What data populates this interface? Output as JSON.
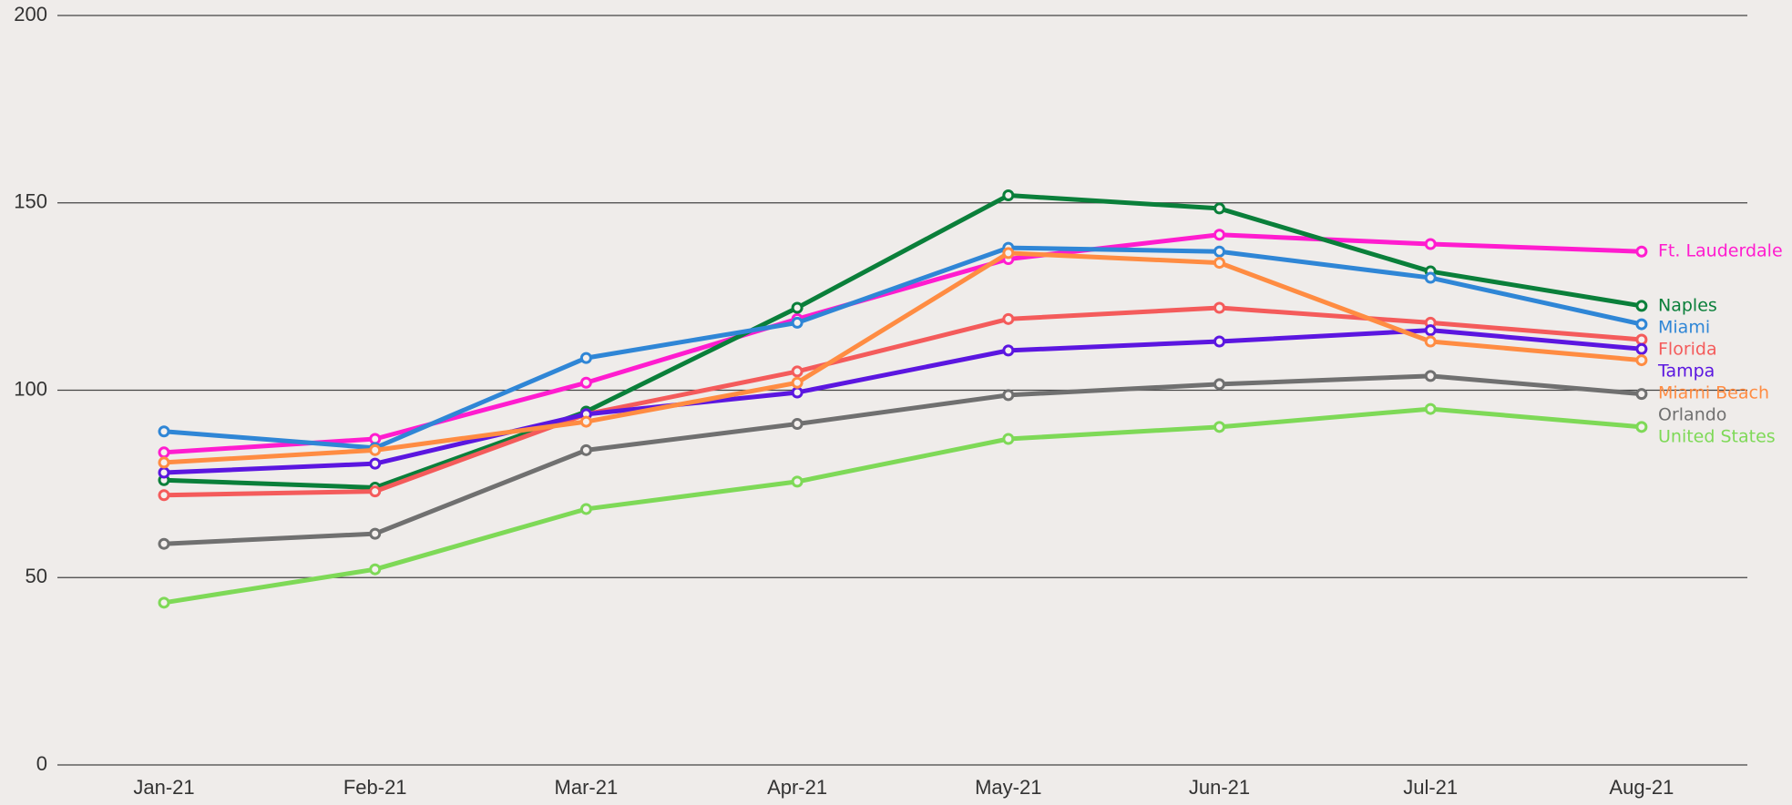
{
  "chart_data": {
    "type": "line",
    "categories": [
      "Jan-21",
      "Feb-21",
      "Mar-21",
      "Apr-21",
      "May-21",
      "Jun-21",
      "Jul-21",
      "Aug-21"
    ],
    "series": [
      {
        "name": "Ft. Lauderdale",
        "color": "#ff1ccf",
        "values": [
          83.4,
          87,
          102,
          119,
          135,
          141.5,
          139,
          137
        ]
      },
      {
        "name": "Naples",
        "color": "#0a7f3a",
        "values": [
          76,
          74,
          94.3,
          122,
          152,
          148.5,
          131.7,
          122.5
        ]
      },
      {
        "name": "Miami",
        "color": "#2f86d6",
        "values": [
          89,
          84.6,
          108.6,
          118,
          138,
          137,
          130,
          117.6
        ]
      },
      {
        "name": "Florida",
        "color": "#f45b5b",
        "values": [
          72,
          73,
          93.6,
          105,
          119,
          122,
          118,
          113.5
        ]
      },
      {
        "name": "Tampa",
        "color": "#5b16e0",
        "values": [
          78,
          80.4,
          93.6,
          99.4,
          110.6,
          113,
          116,
          111
        ]
      },
      {
        "name": "Miami Beach",
        "color": "#ff8c42",
        "values": [
          80.7,
          84,
          91.6,
          102,
          136.6,
          134,
          113,
          108
        ]
      },
      {
        "name": "Orlando",
        "color": "#707070",
        "values": [
          59,
          61.7,
          84,
          91,
          98.7,
          101.6,
          103.8,
          99
        ]
      },
      {
        "name": "United States",
        "color": "#7ed957",
        "values": [
          43.3,
          52.2,
          68.3,
          75.6,
          87,
          90.2,
          95,
          90.2
        ]
      }
    ],
    "ylim": [
      0,
      200
    ],
    "yticks": [
      0,
      50,
      100,
      150,
      200
    ],
    "grid": true
  }
}
